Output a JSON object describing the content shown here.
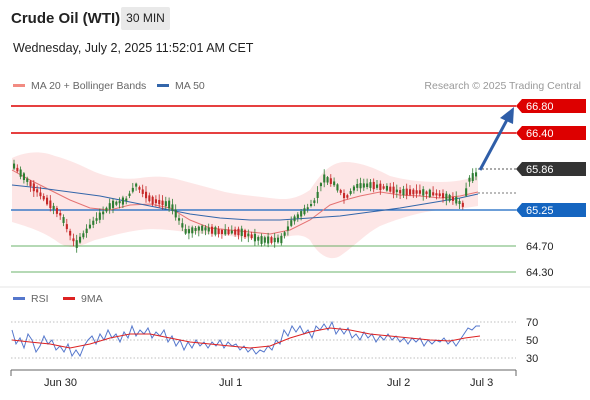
{
  "header": {
    "title": "Crude Oil (WTI)",
    "timeframe": "30 MIN",
    "datetime": "Wednesday, July 2, 2025 11:52:01 AM CET"
  },
  "legend": {
    "bollinger": {
      "label": "MA 20 + Bollinger Bands",
      "color": "#f28b82"
    },
    "ma50": {
      "label": "MA 50",
      "color": "#3366aa"
    },
    "credit": "Research © 2025 Trading Central"
  },
  "levels": {
    "r2": {
      "label": "66.80",
      "value": 66.8,
      "color": "#dd0000"
    },
    "r1": {
      "label": "66.40",
      "value": 66.4,
      "color": "#dd0000"
    },
    "last": {
      "label": "65.86",
      "value": 65.86,
      "color": "#333333"
    },
    "pivot": {
      "label": "65.25",
      "value": 65.25,
      "color": "#1565c0"
    },
    "s1": {
      "label": "64.70",
      "value": 64.7,
      "color": "#3a9a3a"
    },
    "s2": {
      "label": "64.30",
      "value": 64.3,
      "color": "#3a9a3a"
    }
  },
  "rsi_legend": {
    "rsi": {
      "label": "RSI",
      "color": "#5577cc"
    },
    "ma9": {
      "label": "9MA",
      "color": "#dd2222"
    }
  },
  "rsi_axis": [
    "70",
    "50",
    "30"
  ],
  "x_axis": [
    "Jun 30",
    "Jul 1",
    "Jul 2",
    "Jul 3"
  ],
  "colors": {
    "up": "#2e7d32",
    "down": "#c62828",
    "band": "#fde2e2",
    "arrow": "#2f5ea8"
  }
}
